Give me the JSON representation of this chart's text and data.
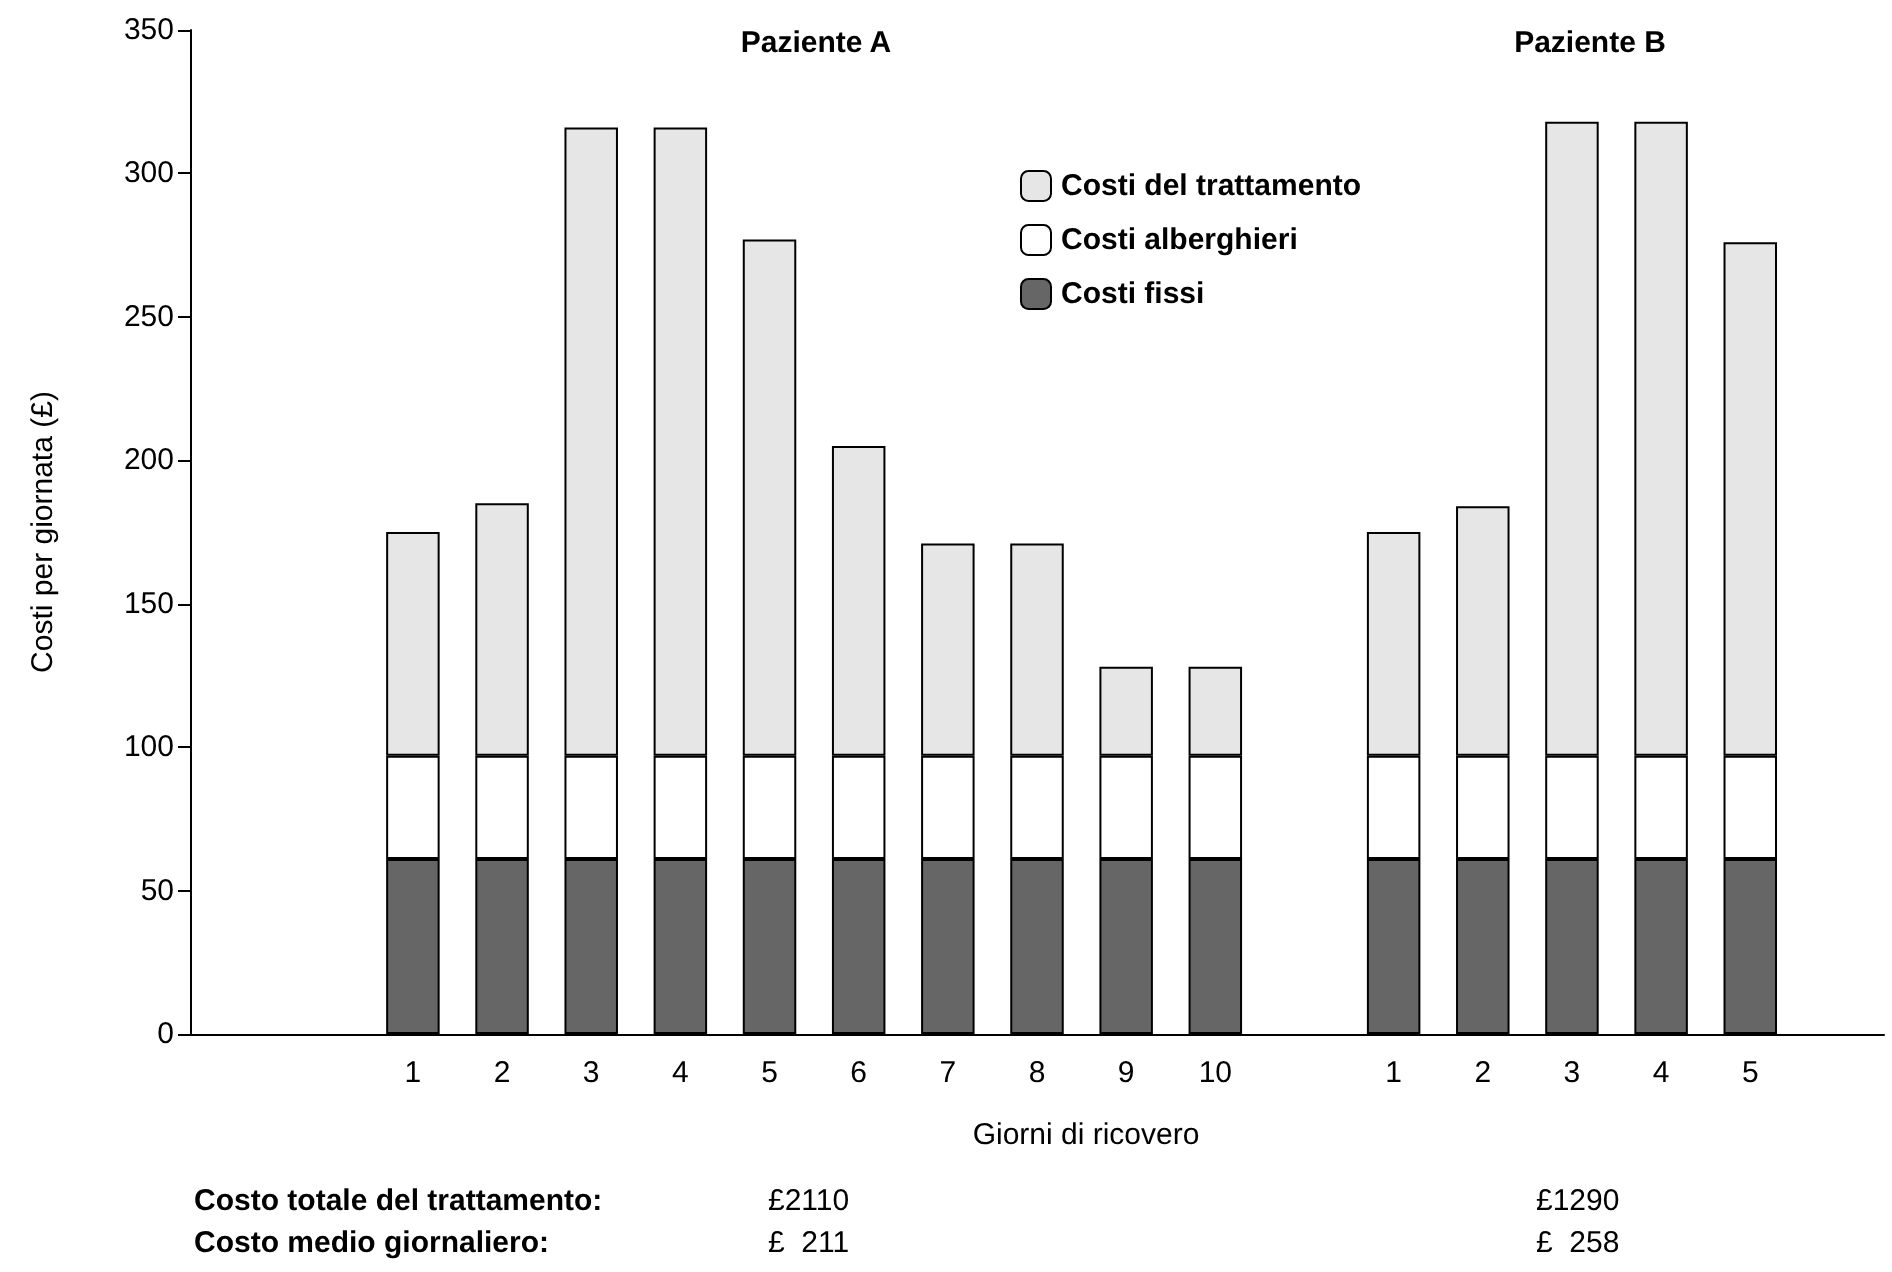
{
  "chart_data": {
    "type": "bar",
    "stacked": true,
    "xlabel": "Giorni di ricovero",
    "ylabel": "Costi per giornata (£)",
    "categories": [
      null,
      null,
      "1",
      "2",
      "3",
      "4",
      "5",
      "6",
      "7",
      "8",
      "9",
      "10",
      null,
      "1",
      "2",
      "3",
      "4",
      "5",
      null
    ],
    "series": [
      {
        "name": "Costi fissi",
        "color": "#666666",
        "values": [
          null,
          null,
          61,
          61,
          61,
          61,
          61,
          61,
          61,
          61,
          61,
          61,
          null,
          61,
          61,
          61,
          61,
          61,
          null
        ]
      },
      {
        "name": "Costi alberghieri",
        "color": "#ffffff",
        "values": [
          null,
          null,
          36,
          36,
          36,
          36,
          36,
          36,
          36,
          36,
          36,
          36,
          null,
          36,
          36,
          36,
          36,
          36,
          null
        ]
      },
      {
        "name": "Costi del trattamento",
        "color": "#e6e6e6",
        "values": [
          null,
          null,
          78,
          88,
          219,
          219,
          180,
          108,
          74,
          74,
          31,
          31,
          null,
          78,
          87,
          221,
          221,
          179,
          null
        ]
      }
    ],
    "ylim": [
      0,
      350
    ],
    "yticks": [
      0,
      50,
      100,
      150,
      200,
      250,
      300,
      350
    ],
    "grid": false,
    "legend": "top",
    "annotations": [
      "Paziente A",
      "Paziente B",
      "Costo totale del trattamento:",
      "£2110",
      "£1290",
      "Costo medio giornaliero:",
      "£  211",
      "£  258"
    ]
  }
}
